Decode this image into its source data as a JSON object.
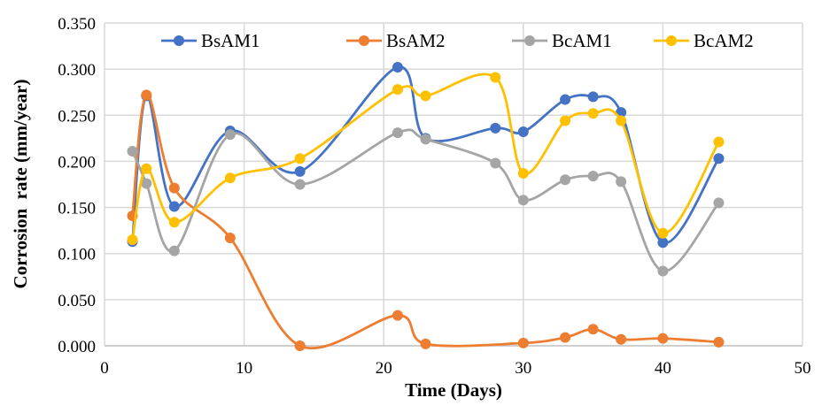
{
  "chart_data": {
    "type": "line",
    "title": "",
    "xlabel": "Time (Days)",
    "ylabel": "Corrosion  rate (mm/year)",
    "xlim": [
      0,
      50
    ],
    "ylim": [
      0,
      0.35
    ],
    "xticks": [
      "0",
      "10",
      "20",
      "30",
      "40",
      "50"
    ],
    "yticks": [
      "0.000",
      "0.050",
      "0.100",
      "0.150",
      "0.200",
      "0.250",
      "0.300",
      "0.350"
    ],
    "grid": true,
    "smooth": true,
    "legend_position": "top",
    "series": [
      {
        "name": "BsAM1",
        "color": "#4472C4",
        "x": [
          2,
          3,
          5,
          9,
          14,
          21,
          23,
          28,
          30,
          33,
          35,
          37,
          40,
          44
        ],
        "y": [
          0.113,
          0.271,
          0.151,
          0.233,
          0.189,
          0.302,
          0.225,
          0.236,
          0.232,
          0.267,
          0.27,
          0.253,
          0.112,
          0.203
        ]
      },
      {
        "name": "BsAM2",
        "color": "#ED7D31",
        "x": [
          2,
          3,
          5,
          9,
          14,
          21,
          23,
          30,
          33,
          35,
          37,
          40,
          44
        ],
        "y": [
          0.141,
          0.272,
          0.171,
          0.117,
          0.0,
          0.033,
          0.002,
          0.003,
          0.009,
          0.018,
          0.007,
          0.008,
          0.004
        ]
      },
      {
        "name": "BcAM1",
        "color": "#A5A5A5",
        "x": [
          2,
          3,
          5,
          9,
          14,
          21,
          23,
          28,
          30,
          33,
          35,
          37,
          40,
          44
        ],
        "y": [
          0.211,
          0.176,
          0.103,
          0.229,
          0.175,
          0.231,
          0.224,
          0.198,
          0.158,
          0.18,
          0.184,
          0.178,
          0.081,
          0.155
        ]
      },
      {
        "name": "BcAM2",
        "color": "#FFC000",
        "x": [
          2,
          3,
          5,
          9,
          14,
          21,
          23,
          28,
          30,
          33,
          35,
          37,
          40,
          44
        ],
        "y": [
          0.115,
          0.192,
          0.134,
          0.182,
          0.203,
          0.278,
          0.271,
          0.291,
          0.187,
          0.244,
          0.252,
          0.244,
          0.122,
          0.221
        ]
      }
    ]
  }
}
